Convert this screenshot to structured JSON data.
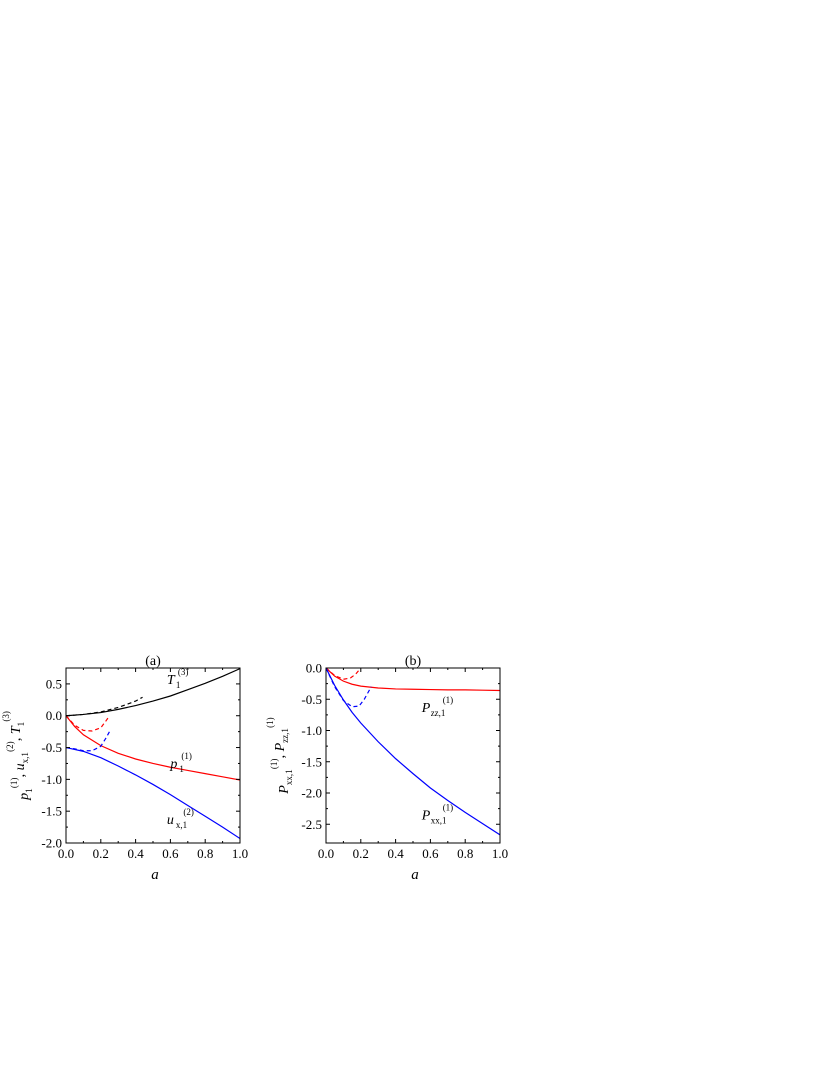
{
  "chart_data": [
    {
      "type": "line",
      "panel_label": "(a)",
      "xlabel": "a",
      "ylabel": {
        "parts": [
          {
            "t": "p",
            "it": true
          },
          {
            "t": "1",
            "sub": true
          },
          {
            "t": "(1)",
            "sup": true
          },
          {
            "t": ", "
          },
          {
            "t": "u",
            "it": true
          },
          {
            "t": "x,1",
            "sub": true
          },
          {
            "t": "(2)",
            "sup": true
          },
          {
            "t": ", "
          },
          {
            "t": "T",
            "it": true
          },
          {
            "t": "1",
            "sub": true
          },
          {
            "t": "(3)",
            "sup": true
          }
        ]
      },
      "xlim": [
        0.0,
        1.0
      ],
      "ylim": [
        -2.0,
        0.75
      ],
      "xticks": [
        "0.0",
        "0.2",
        "0.4",
        "0.6",
        "0.8",
        "1.0"
      ],
      "xtick_values": [
        0.0,
        0.2,
        0.4,
        0.6,
        0.8,
        1.0
      ],
      "yticks": [
        "-2.0",
        "-1.5",
        "-1.0",
        "-0.5",
        "0.0",
        "0.5"
      ],
      "ytick_values": [
        -2.0,
        -1.5,
        -1.0,
        -0.5,
        0.0,
        0.5
      ],
      "series": [
        {
          "color": "#000000",
          "dash": false,
          "x": [
            0.0,
            0.1,
            0.2,
            0.3,
            0.4,
            0.5,
            0.6,
            0.7,
            0.8,
            0.9,
            1.0
          ],
          "y": [
            0.0,
            0.02,
            0.05,
            0.1,
            0.16,
            0.23,
            0.31,
            0.41,
            0.51,
            0.62,
            0.74
          ]
        },
        {
          "color": "#000000",
          "dash": true,
          "x": [
            0.0,
            0.1,
            0.2,
            0.3,
            0.4,
            0.44
          ],
          "y": [
            0.0,
            0.02,
            0.06,
            0.13,
            0.23,
            0.29
          ]
        },
        {
          "color": "#ff0000",
          "dash": false,
          "x": [
            0.0,
            0.05,
            0.1,
            0.2,
            0.3,
            0.4,
            0.5,
            0.6,
            0.7,
            0.8,
            0.9,
            1.0
          ],
          "y": [
            0.0,
            -0.17,
            -0.3,
            -0.47,
            -0.59,
            -0.68,
            -0.75,
            -0.81,
            -0.86,
            -0.91,
            -0.96,
            -1.01
          ]
        },
        {
          "color": "#ff0000",
          "dash": true,
          "x": [
            0.0,
            0.05,
            0.1,
            0.15,
            0.2,
            0.23,
            0.25
          ],
          "y": [
            0.0,
            -0.15,
            -0.23,
            -0.24,
            -0.19,
            -0.08,
            0.0
          ]
        },
        {
          "color": "#0000ff",
          "dash": false,
          "x": [
            0.0,
            0.1,
            0.2,
            0.3,
            0.4,
            0.5,
            0.6,
            0.7,
            0.8,
            0.9,
            1.0
          ],
          "y": [
            -0.5,
            -0.56,
            -0.66,
            -0.79,
            -0.93,
            -1.08,
            -1.24,
            -1.41,
            -1.58,
            -1.75,
            -1.93
          ]
        },
        {
          "color": "#0000ff",
          "dash": true,
          "x": [
            0.0,
            0.05,
            0.1,
            0.15,
            0.2,
            0.23,
            0.25
          ],
          "y": [
            -0.5,
            -0.52,
            -0.55,
            -0.55,
            -0.48,
            -0.35,
            -0.25
          ]
        }
      ],
      "annotations": [
        {
          "base": "T",
          "sub": "1",
          "sup": "(3)",
          "x": 0.58,
          "y": 0.5
        },
        {
          "base": "p",
          "sub": "1",
          "sup": "(1)",
          "x": 0.6,
          "y": -0.82
        },
        {
          "base": "u",
          "sub": "x,1",
          "sup": "(2)",
          "x": 0.58,
          "y": -1.7
        }
      ]
    },
    {
      "type": "line",
      "panel_label": "(b)",
      "xlabel": "a",
      "ylabel": {
        "parts": [
          {
            "t": "P",
            "it": true
          },
          {
            "t": "xx,1",
            "sub": true
          },
          {
            "t": "(1)",
            "sup": true
          },
          {
            "t": ", "
          },
          {
            "t": "P",
            "it": true
          },
          {
            "t": "zz,1",
            "sub": true
          },
          {
            "t": "(1)",
            "sup": true
          }
        ]
      },
      "xlim": [
        0.0,
        1.0
      ],
      "ylim": [
        -2.8,
        0.0
      ],
      "xticks": [
        "0.0",
        "0.2",
        "0.4",
        "0.6",
        "0.8",
        "1.0"
      ],
      "xtick_values": [
        0.0,
        0.2,
        0.4,
        0.6,
        0.8,
        1.0
      ],
      "yticks": [
        "-2.5",
        "-2.0",
        "-1.5",
        "-1.0",
        "-0.5",
        "0.0"
      ],
      "ytick_values": [
        -2.5,
        -2.0,
        -1.5,
        -1.0,
        -0.5,
        0.0
      ],
      "series": [
        {
          "color": "#ff0000",
          "dash": false,
          "x": [
            0.0,
            0.05,
            0.1,
            0.15,
            0.2,
            0.3,
            0.4,
            0.5,
            0.6,
            0.7,
            0.8,
            0.9,
            1.0
          ],
          "y": [
            0.0,
            -0.13,
            -0.21,
            -0.26,
            -0.29,
            -0.32,
            -0.335,
            -0.34,
            -0.345,
            -0.35,
            -0.35,
            -0.355,
            -0.36
          ]
        },
        {
          "color": "#ff0000",
          "dash": true,
          "x": [
            0.0,
            0.05,
            0.1,
            0.14,
            0.17,
            0.2
          ],
          "y": [
            0.0,
            -0.12,
            -0.18,
            -0.16,
            -0.1,
            0.0
          ]
        },
        {
          "color": "#0000ff",
          "dash": false,
          "x": [
            0.0,
            0.05,
            0.1,
            0.15,
            0.2,
            0.3,
            0.4,
            0.5,
            0.6,
            0.7,
            0.8,
            0.9,
            1.0
          ],
          "y": [
            0.0,
            -0.28,
            -0.51,
            -0.71,
            -0.88,
            -1.18,
            -1.45,
            -1.69,
            -1.92,
            -2.12,
            -2.31,
            -2.49,
            -2.67
          ]
        },
        {
          "color": "#0000ff",
          "dash": true,
          "x": [
            0.0,
            0.05,
            0.1,
            0.15,
            0.19,
            0.22,
            0.26
          ],
          "y": [
            0.0,
            -0.3,
            -0.52,
            -0.62,
            -0.61,
            -0.5,
            -0.3
          ]
        }
      ],
      "annotations": [
        {
          "base": "P",
          "sub": "zz,1",
          "sup": "(1)",
          "x": 0.55,
          "y": -0.7
        },
        {
          "base": "P",
          "sub": "xx,1",
          "sup": "(1)",
          "x": 0.55,
          "y": -2.42
        }
      ]
    }
  ]
}
